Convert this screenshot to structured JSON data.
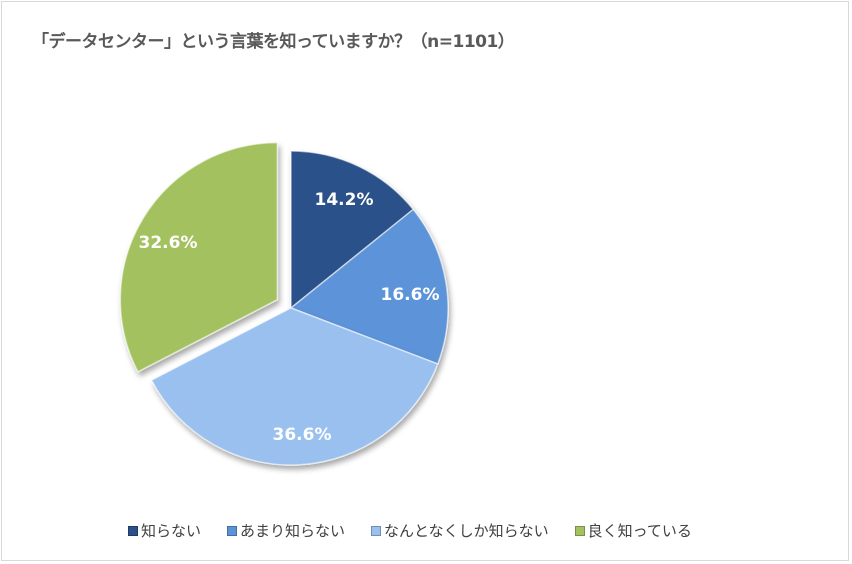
{
  "title": "「データセンター」という言葉を知っていますか？（n=1101）",
  "chart_data": {
    "type": "pie",
    "title": "「データセンター」という言葉を知っていますか？（n=1101）",
    "sample_size": 1101,
    "categories": [
      "知らない",
      "あまり知らない",
      "なんとなくしか知らない",
      "良く知っている"
    ],
    "values": [
      14.2,
      16.6,
      36.6,
      32.6
    ],
    "labels": [
      "14.2%",
      "16.6%",
      "36.6%",
      "32.6%"
    ],
    "colors": [
      "#2a5189",
      "#5b93d9",
      "#99c0ee",
      "#a3c15e"
    ],
    "exploded": [
      "良く知っている"
    ],
    "start_angle": "12 o'clock, clockwise",
    "legend_position": "bottom"
  },
  "legend": [
    {
      "label": "知らない",
      "color": "#2a5189"
    },
    {
      "label": "あまり知らない",
      "color": "#5b93d9"
    },
    {
      "label": "なんとなくしか知らない",
      "color": "#99c0ee"
    },
    {
      "label": "良く知っている",
      "color": "#a3c15e"
    }
  ]
}
